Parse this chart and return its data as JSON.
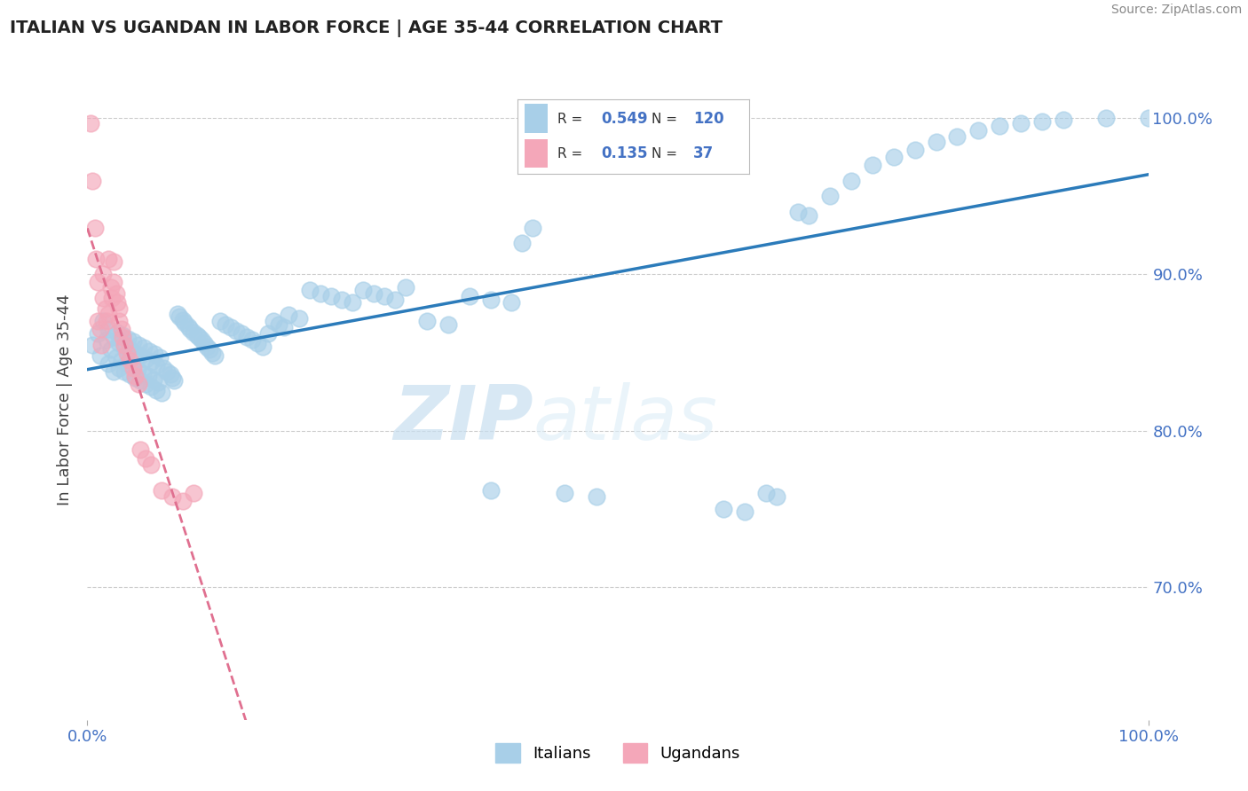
{
  "title": "ITALIAN VS UGANDAN IN LABOR FORCE | AGE 35-44 CORRELATION CHART",
  "source": "Source: ZipAtlas.com",
  "ylabel": "In Labor Force | Age 35-44",
  "italians_R": 0.549,
  "italians_N": 120,
  "ugandans_R": 0.135,
  "ugandans_N": 37,
  "blue_color": "#a8cfe8",
  "pink_color": "#f4a7b9",
  "blue_line_color": "#2b7bba",
  "pink_line_color": "#e07090",
  "watermark_zip": "ZIP",
  "watermark_atlas": "atlas",
  "xmin": 0.0,
  "xmax": 1.0,
  "ymin": 0.615,
  "ymax": 1.025,
  "ytick_labels": [
    "70.0%",
    "80.0%",
    "90.0%",
    "100.0%"
  ],
  "ytick_vals": [
    0.7,
    0.8,
    0.9,
    1.0
  ],
  "xtick_labels": [
    "0.0%",
    "100.0%"
  ],
  "xtick_vals": [
    0.0,
    1.0
  ],
  "blue_scatter_x": [
    0.005,
    0.01,
    0.012,
    0.015,
    0.018,
    0.02,
    0.02,
    0.022,
    0.025,
    0.025,
    0.027,
    0.028,
    0.03,
    0.03,
    0.032,
    0.033,
    0.035,
    0.035,
    0.037,
    0.038,
    0.04,
    0.04,
    0.042,
    0.043,
    0.045,
    0.045,
    0.047,
    0.048,
    0.05,
    0.05,
    0.052,
    0.053,
    0.055,
    0.055,
    0.057,
    0.058,
    0.06,
    0.06,
    0.062,
    0.063,
    0.065,
    0.065,
    0.067,
    0.068,
    0.07,
    0.072,
    0.075,
    0.078,
    0.08,
    0.082,
    0.085,
    0.087,
    0.09,
    0.092,
    0.095,
    0.097,
    0.1,
    0.103,
    0.105,
    0.108,
    0.11,
    0.113,
    0.115,
    0.118,
    0.12,
    0.125,
    0.13,
    0.135,
    0.14,
    0.145,
    0.15,
    0.155,
    0.16,
    0.165,
    0.17,
    0.175,
    0.18,
    0.185,
    0.19,
    0.2,
    0.21,
    0.22,
    0.23,
    0.24,
    0.25,
    0.26,
    0.27,
    0.28,
    0.29,
    0.3,
    0.32,
    0.34,
    0.36,
    0.38,
    0.4,
    0.42,
    0.45,
    0.48,
    0.38,
    0.41,
    0.6,
    0.62,
    0.64,
    0.65,
    0.67,
    0.68,
    0.7,
    0.72,
    0.74,
    0.76,
    0.78,
    0.8,
    0.82,
    0.84,
    0.86,
    0.88,
    0.9,
    0.92,
    0.96,
    1.0
  ],
  "blue_scatter_y": [
    0.855,
    0.862,
    0.848,
    0.87,
    0.858,
    0.843,
    0.865,
    0.852,
    0.838,
    0.86,
    0.847,
    0.863,
    0.84,
    0.856,
    0.845,
    0.861,
    0.838,
    0.854,
    0.843,
    0.859,
    0.836,
    0.852,
    0.841,
    0.857,
    0.834,
    0.85,
    0.839,
    0.855,
    0.832,
    0.848,
    0.837,
    0.853,
    0.83,
    0.846,
    0.835,
    0.851,
    0.828,
    0.844,
    0.833,
    0.849,
    0.826,
    0.842,
    0.831,
    0.847,
    0.824,
    0.84,
    0.838,
    0.836,
    0.834,
    0.832,
    0.875,
    0.873,
    0.871,
    0.869,
    0.867,
    0.865,
    0.863,
    0.861,
    0.86,
    0.858,
    0.856,
    0.854,
    0.852,
    0.85,
    0.848,
    0.87,
    0.868,
    0.866,
    0.864,
    0.862,
    0.86,
    0.858,
    0.856,
    0.854,
    0.862,
    0.87,
    0.868,
    0.866,
    0.874,
    0.872,
    0.89,
    0.888,
    0.886,
    0.884,
    0.882,
    0.89,
    0.888,
    0.886,
    0.884,
    0.892,
    0.87,
    0.868,
    0.886,
    0.884,
    0.882,
    0.93,
    0.76,
    0.758,
    0.762,
    0.92,
    0.75,
    0.748,
    0.76,
    0.758,
    0.94,
    0.938,
    0.95,
    0.96,
    0.97,
    0.975,
    0.98,
    0.985,
    0.988,
    0.992,
    0.995,
    0.997,
    0.998,
    0.999,
    1.0,
    1.0
  ],
  "pink_scatter_x": [
    0.003,
    0.005,
    0.007,
    0.008,
    0.01,
    0.01,
    0.012,
    0.013,
    0.015,
    0.015,
    0.017,
    0.018,
    0.02,
    0.02,
    0.022,
    0.023,
    0.025,
    0.025,
    0.027,
    0.028,
    0.03,
    0.03,
    0.032,
    0.033,
    0.035,
    0.037,
    0.04,
    0.043,
    0.045,
    0.048,
    0.05,
    0.055,
    0.06,
    0.07,
    0.08,
    0.09,
    0.1
  ],
  "pink_scatter_y": [
    0.997,
    0.96,
    0.93,
    0.91,
    0.895,
    0.87,
    0.865,
    0.855,
    0.9,
    0.885,
    0.878,
    0.87,
    0.91,
    0.875,
    0.892,
    0.885,
    0.908,
    0.895,
    0.888,
    0.882,
    0.878,
    0.87,
    0.865,
    0.86,
    0.855,
    0.85,
    0.845,
    0.84,
    0.835,
    0.83,
    0.788,
    0.782,
    0.778,
    0.762,
    0.758,
    0.755,
    0.76
  ]
}
